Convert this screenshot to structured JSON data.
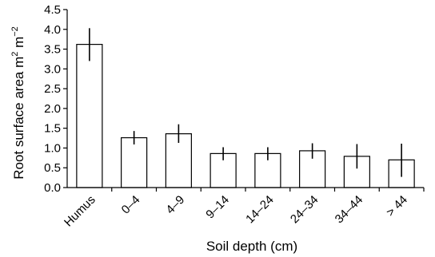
{
  "chart_data": {
    "type": "bar",
    "title": "",
    "xlabel": "Soil depth (cm)",
    "ylabel": "Root surface area m² m⁻²",
    "ylabel_parts": {
      "main": "Root surface area m",
      "exp1": "2",
      "mid": " m",
      "exp2": "−2"
    },
    "ylim": [
      0,
      4.5
    ],
    "yticks": [
      "0.0",
      "0.5",
      "1.0",
      "1.5",
      "2.0",
      "2.5",
      "3.0",
      "3.5",
      "4.0",
      "4.5"
    ],
    "categories": [
      "Humus",
      "0–4",
      "4–9",
      "9–14",
      "14–24",
      "24–34",
      "34–44",
      "> 44"
    ],
    "values": [
      3.62,
      1.26,
      1.36,
      0.86,
      0.86,
      0.93,
      0.79,
      0.7
    ],
    "error_bars": [
      [
        3.2,
        4.03
      ],
      [
        1.09,
        1.43
      ],
      [
        1.13,
        1.6
      ],
      [
        0.69,
        1.02
      ],
      [
        0.69,
        1.02
      ],
      [
        0.73,
        1.12
      ],
      [
        0.48,
        1.1
      ],
      [
        0.27,
        1.11
      ]
    ],
    "grid": false,
    "bar_color": "#ffffff",
    "edge_color": "#000000"
  }
}
